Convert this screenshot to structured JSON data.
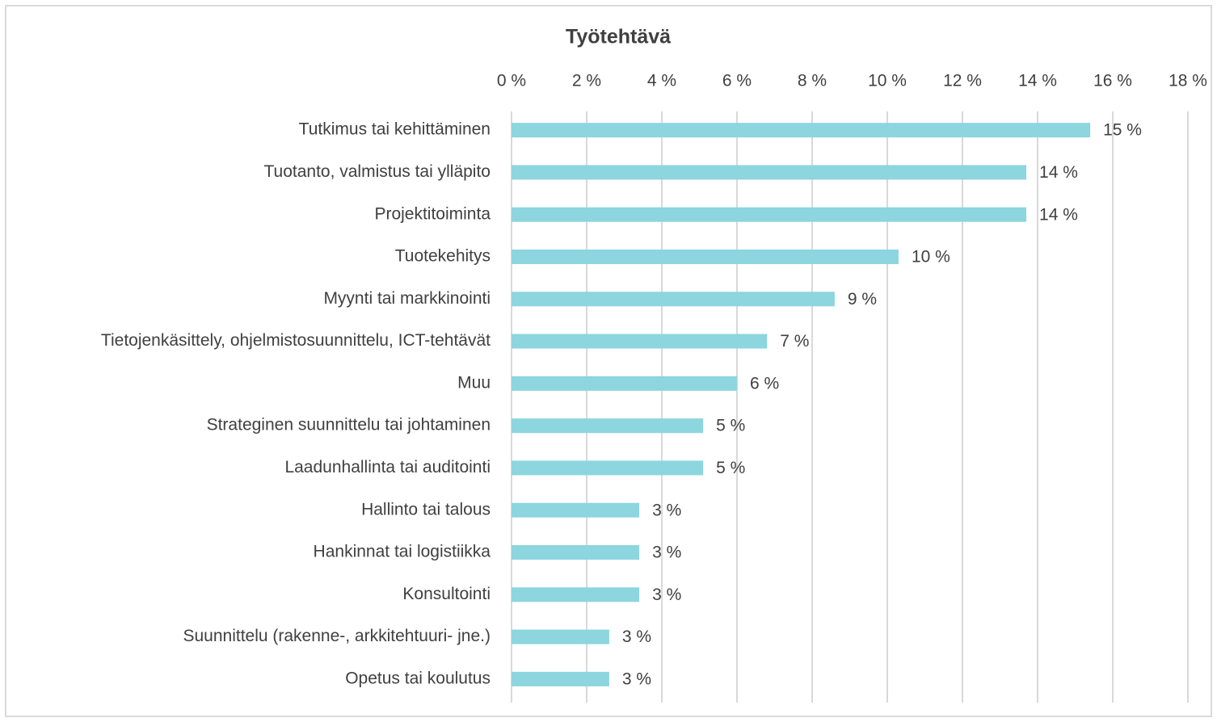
{
  "chart_data": {
    "type": "barh",
    "title": "Työtehtävä",
    "categories": [
      "Tutkimus tai kehittäminen",
      "Tuotanto, valmistus tai ylläpito",
      "Projektitoiminta",
      "Tuotekehitys",
      "Myynti tai markkinointi",
      "Tietojenkäsittely, ohjelmistosuunnittelu, ICT-tehtävät",
      "Muu",
      "Strateginen suunnittelu tai johtaminen",
      "Laadunhallinta tai auditointi",
      "Hallinto tai talous",
      "Hankinnat tai logistiikka",
      "Konsultointi",
      "Suunnittelu (rakenne-, arkkitehtuuri- jne.)",
      "Opetus tai koulutus"
    ],
    "values": [
      15.4,
      13.7,
      13.7,
      10.3,
      8.6,
      6.8,
      6.0,
      5.1,
      5.1,
      3.4,
      3.4,
      3.4,
      2.6,
      2.6
    ],
    "value_labels": [
      "15 %",
      "14 %",
      "14 %",
      "10 %",
      "9 %",
      "7 %",
      "6 %",
      "5 %",
      "5 %",
      "3 %",
      "3 %",
      "3 %",
      "3 %",
      "3 %"
    ],
    "color": "#8dd5df",
    "xlim": [
      0,
      18
    ],
    "xticks": [
      {
        "value": 0,
        "label": "0 %"
      },
      {
        "value": 2,
        "label": "2 %"
      },
      {
        "value": 4,
        "label": "4 %"
      },
      {
        "value": 6,
        "label": "6 %"
      },
      {
        "value": 8,
        "label": "8 %"
      },
      {
        "value": 10,
        "label": "10 %"
      },
      {
        "value": 12,
        "label": "12 %"
      },
      {
        "value": 14,
        "label": "14 %"
      },
      {
        "value": 16,
        "label": "16 %"
      },
      {
        "value": 18,
        "label": "18 %"
      }
    ],
    "grid": true
  }
}
